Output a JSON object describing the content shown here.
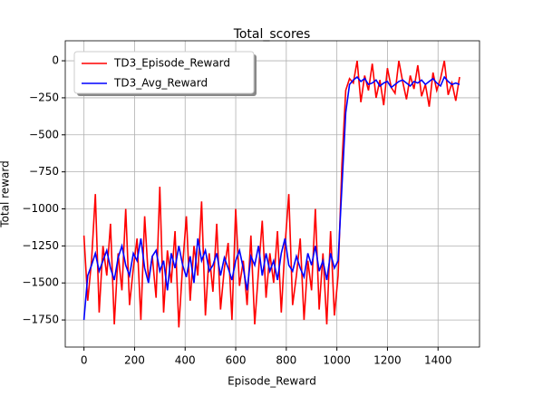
{
  "chart_data": {
    "type": "line",
    "title": "Total_scores",
    "x_label": "Episode_Reward",
    "y_label": "Total reward",
    "x": [
      0,
      15,
      30,
      45,
      60,
      75,
      90,
      105,
      120,
      135,
      150,
      165,
      180,
      195,
      210,
      225,
      240,
      255,
      270,
      285,
      300,
      315,
      330,
      345,
      360,
      375,
      390,
      405,
      420,
      435,
      450,
      465,
      480,
      495,
      510,
      525,
      540,
      555,
      570,
      585,
      600,
      615,
      630,
      645,
      660,
      675,
      690,
      705,
      720,
      735,
      750,
      765,
      780,
      795,
      810,
      825,
      840,
      855,
      870,
      885,
      900,
      915,
      930,
      945,
      960,
      975,
      990,
      1005,
      1020,
      1035,
      1050,
      1065,
      1080,
      1095,
      1110,
      1125,
      1140,
      1155,
      1170,
      1185,
      1200,
      1215,
      1230,
      1245,
      1260,
      1275,
      1290,
      1305,
      1320,
      1335,
      1350,
      1365,
      1380,
      1395,
      1410,
      1425,
      1440,
      1455,
      1470,
      1485
    ],
    "series": [
      {
        "name": "TD3_Episode_Reward",
        "color": "#ff0000",
        "values": [
          -1180,
          -1620,
          -1350,
          -900,
          -1700,
          -1250,
          -1450,
          -1100,
          -1780,
          -1300,
          -1550,
          -1000,
          -1650,
          -1400,
          -1200,
          -1750,
          -1050,
          -1480,
          -1320,
          -1600,
          -850,
          -1700,
          -1280,
          -1500,
          -1150,
          -1800,
          -1380,
          -1050,
          -1620,
          -1250,
          -1450,
          -950,
          -1720,
          -1300,
          -1560,
          -1100,
          -1680,
          -1400,
          -1230,
          -1750,
          -1000,
          -1520,
          -1350,
          -1650,
          -1180,
          -1780,
          -1420,
          -1080,
          -1600,
          -1300,
          -1500,
          -1150,
          -1700,
          -1250,
          -900,
          -1650,
          -1450,
          -1200,
          -1750,
          -1350,
          -1550,
          -1000,
          -1680,
          -1300,
          -1780,
          -1150,
          -1720,
          -1450,
          -700,
          -200,
          -120,
          -150,
          0,
          -280,
          -100,
          -200,
          -20,
          -250,
          -130,
          -300,
          -50,
          -180,
          -220,
          0,
          -140,
          -260,
          -100,
          -190,
          -30,
          -240,
          -160,
          -310,
          -80,
          -200,
          -120,
          0,
          -230,
          -150,
          -270,
          -110
        ]
      },
      {
        "name": "TD3_Avg_Reward",
        "color": "#0000ff",
        "values": [
          -1750,
          -1450,
          -1380,
          -1300,
          -1420,
          -1350,
          -1280,
          -1400,
          -1480,
          -1330,
          -1250,
          -1380,
          -1450,
          -1300,
          -1350,
          -1200,
          -1400,
          -1500,
          -1320,
          -1280,
          -1420,
          -1350,
          -1550,
          -1300,
          -1400,
          -1250,
          -1380,
          -1460,
          -1320,
          -1500,
          -1200,
          -1350,
          -1280,
          -1420,
          -1380,
          -1300,
          -1450,
          -1330,
          -1400,
          -1480,
          -1350,
          -1280,
          -1400,
          -1550,
          -1320,
          -1380,
          -1250,
          -1450,
          -1300,
          -1420,
          -1350,
          -1480,
          -1300,
          -1200,
          -1380,
          -1420,
          -1320,
          -1400,
          -1460,
          -1300,
          -1380,
          -1250,
          -1420,
          -1350,
          -1480,
          -1300,
          -1400,
          -1350,
          -850,
          -350,
          -160,
          -130,
          -110,
          -140,
          -120,
          -160,
          -150,
          -130,
          -170,
          -150,
          -140,
          -180,
          -160,
          -140,
          -130,
          -150,
          -170,
          -140,
          -150,
          -130,
          -160,
          -140,
          -120,
          -150,
          -170,
          -110,
          -140,
          -160,
          -150,
          -160
        ]
      }
    ],
    "xlim": [
      -74,
      1564
    ],
    "ylim": [
      -1933,
      135
    ],
    "xticks": [
      0,
      200,
      400,
      600,
      800,
      1000,
      1200,
      1400
    ],
    "yticks": [
      0,
      {
        "value": -250,
        "label": "−250"
      },
      {
        "value": -500,
        "label": "−500"
      },
      {
        "value": -750,
        "label": "−750"
      },
      {
        "value": -1000,
        "label": "−1000"
      },
      {
        "value": -1250,
        "label": "−1250"
      },
      {
        "value": -1500,
        "label": "−1500"
      },
      {
        "value": -1750,
        "label": "−1750"
      }
    ],
    "grid": true,
    "legend": "upper left"
  }
}
